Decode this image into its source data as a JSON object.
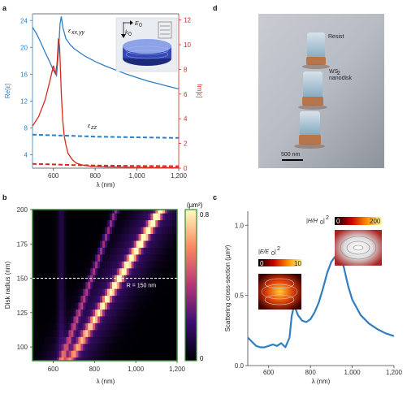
{
  "panels": {
    "a": "a",
    "b": "b",
    "c": "c",
    "d": "d"
  },
  "colors": {
    "blue": "#2f7ec2",
    "red": "#d62a1e",
    "axis": "#444444"
  },
  "chart_data": [
    {
      "id": "a",
      "type": "line",
      "xlabel": "λ (nm)",
      "ylabel_left": "Re[ε]",
      "ylabel_right": "Im[ε]",
      "xlim": [
        500,
        1200
      ],
      "ylim_left": [
        2,
        25
      ],
      "ylim_right": [
        0,
        12.5
      ],
      "x_ticks": [
        600,
        800,
        1000,
        1200
      ],
      "x_tick_labels": [
        "600",
        "800",
        "1,000",
        "1,200"
      ],
      "y_left_ticks": [
        4,
        8,
        12,
        16,
        20,
        24
      ],
      "y_right_ticks": [
        0,
        2,
        4,
        6,
        8,
        10,
        12
      ],
      "annotations": [
        "ε",
        "xx,yy",
        "ε",
        "zz",
        "E",
        "0",
        "k",
        "0"
      ],
      "series": [
        {
          "axis": "left",
          "style": "solid",
          "color": "#2f7ec2",
          "x": [
            500,
            520,
            540,
            560,
            580,
            600,
            615,
            625,
            632,
            638,
            645,
            660,
            680,
            700,
            750,
            800,
            850,
            900,
            950,
            1000,
            1050,
            1100,
            1150,
            1200
          ],
          "y": [
            23.0,
            22.0,
            20.7,
            19.3,
            18.0,
            16.6,
            15.8,
            19.5,
            23.5,
            24.6,
            23.0,
            21.3,
            20.4,
            19.8,
            18.7,
            17.9,
            17.2,
            16.6,
            16.0,
            15.5,
            15.0,
            14.6,
            14.2,
            13.8
          ]
        },
        {
          "axis": "left",
          "style": "dashed",
          "color": "#2f7ec2",
          "x": [
            500,
            550,
            600,
            650,
            700,
            800,
            900,
            1000,
            1100,
            1200
          ],
          "y": [
            7.0,
            6.95,
            6.9,
            6.85,
            6.8,
            6.7,
            6.65,
            6.6,
            6.55,
            6.5
          ]
        },
        {
          "axis": "right",
          "style": "solid",
          "color": "#d62a1e",
          "x": [
            500,
            530,
            560,
            585,
            600,
            610,
            618,
            624,
            630,
            638,
            645,
            652,
            660,
            670,
            690,
            710,
            740,
            780,
            850,
            950,
            1050,
            1200
          ],
          "y": [
            3.4,
            4.2,
            5.5,
            7.2,
            8.3,
            7.6,
            8.5,
            10.5,
            9.8,
            6.0,
            3.8,
            2.6,
            1.9,
            1.2,
            0.7,
            0.4,
            0.25,
            0.15,
            0.1,
            0.07,
            0.05,
            0.04
          ]
        },
        {
          "axis": "right",
          "style": "dashed",
          "color": "#d62a1e",
          "x": [
            500,
            600,
            700,
            800,
            900,
            1000,
            1100,
            1200
          ],
          "y": [
            0.35,
            0.3,
            0.25,
            0.22,
            0.2,
            0.18,
            0.17,
            0.16
          ]
        }
      ]
    },
    {
      "id": "b",
      "type": "heatmap",
      "xlabel": "λ (nm)",
      "ylabel": "Disk radius (nm)",
      "xlim": [
        500,
        1200
      ],
      "ylim": [
        90,
        200
      ],
      "x_ticks": [
        600,
        800,
        1000,
        1200
      ],
      "x_tick_labels": [
        "600",
        "800",
        "1,000",
        "1,200"
      ],
      "y_ticks": [
        100,
        125,
        150,
        175,
        200
      ],
      "colorbar_unit": "(µm²)",
      "colorbar_ticks": [
        "0.8",
        "0"
      ],
      "zlim": [
        0,
        0.8
      ],
      "radii": [
        90,
        95,
        100,
        105,
        110,
        115,
        120,
        125,
        130,
        135,
        140,
        145,
        150,
        155,
        160,
        165,
        170,
        175,
        180,
        185,
        190,
        195,
        200
      ],
      "peak_wavelength": [
        680,
        700,
        720,
        740,
        760,
        780,
        800,
        820,
        840,
        860,
        880,
        900,
        920,
        940,
        960,
        980,
        1000,
        1020,
        1040,
        1060,
        1080,
        1100,
        1120
      ],
      "peak_value": [
        0.45,
        0.47,
        0.5,
        0.52,
        0.55,
        0.57,
        0.6,
        0.62,
        0.65,
        0.67,
        0.7,
        0.72,
        0.74,
        0.75,
        0.76,
        0.77,
        0.78,
        0.79,
        0.8,
        0.8,
        0.8,
        0.8,
        0.8
      ],
      "ridge_wavelength": [
        640,
        652,
        664,
        676,
        688,
        700,
        712,
        724,
        736,
        748,
        760,
        772,
        784,
        796,
        808,
        820,
        832,
        844,
        856,
        868,
        880,
        892,
        904
      ],
      "dashed_line_radius": 150,
      "annotation": "R = 150 nm"
    },
    {
      "id": "c",
      "type": "line",
      "xlabel": "λ (nm)",
      "ylabel": "Scattering cross-section (µm²)",
      "xlim": [
        500,
        1200
      ],
      "ylim": [
        0,
        1.1
      ],
      "x_ticks": [
        600,
        800,
        1000,
        1200
      ],
      "x_tick_labels": [
        "600",
        "800",
        "1,000",
        "1,200"
      ],
      "y_ticks": [
        0,
        0.5,
        1.0
      ],
      "y_tick_labels": [
        "0.0",
        "0.5",
        "1.0"
      ],
      "inset_labels": [
        "|E/E",
        "0",
        "|",
        "2",
        "|H/H",
        "0",
        "|",
        "2"
      ],
      "inset_e_scale": [
        "0",
        "10"
      ],
      "inset_h_scale": [
        "0",
        "200"
      ],
      "series": [
        {
          "color": "#2f7ec2",
          "x": [
            500,
            520,
            540,
            560,
            580,
            600,
            620,
            640,
            660,
            680,
            700,
            710,
            720,
            730,
            740,
            760,
            780,
            800,
            820,
            840,
            860,
            880,
            900,
            920,
            940,
            960,
            980,
            1000,
            1040,
            1080,
            1120,
            1160,
            1200
          ],
          "y": [
            0.2,
            0.17,
            0.14,
            0.13,
            0.13,
            0.14,
            0.15,
            0.14,
            0.16,
            0.13,
            0.2,
            0.35,
            0.42,
            0.4,
            0.36,
            0.32,
            0.31,
            0.33,
            0.38,
            0.45,
            0.55,
            0.66,
            0.74,
            0.78,
            0.79,
            0.7,
            0.57,
            0.47,
            0.36,
            0.3,
            0.26,
            0.23,
            0.21
          ]
        }
      ]
    }
  ],
  "sem": {
    "labels": [
      "Resist",
      "WS",
      "2",
      "nanodisk"
    ],
    "scale_bar": "500 nm"
  }
}
